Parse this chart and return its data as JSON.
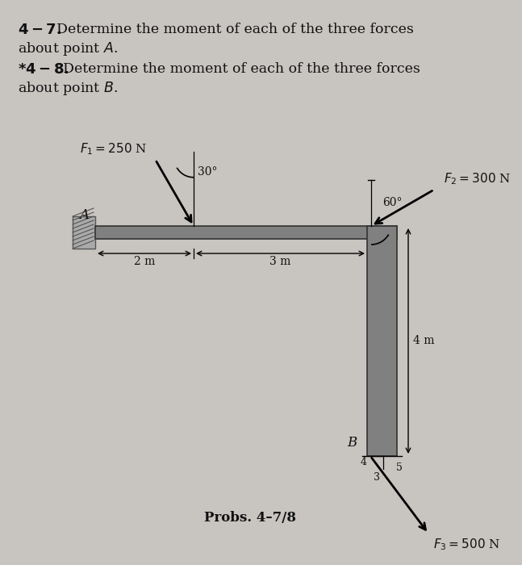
{
  "bg_color": "#c8c4c0",
  "text_color": "#111111",
  "beam_color": "#808080",
  "beam_edge_color": "#333333",
  "wall_color": "#999999",
  "F1_label": "$F_1 = 250$ N",
  "F2_label": "$F_2 = 300$ N",
  "F3_label": "$F_3 = 500$ N",
  "angle1_label": "30°",
  "angle2_label": "60°",
  "dim_2m": "2 m",
  "dim_3m": "3 m",
  "dim_4m": "4 m",
  "label_A": "A",
  "label_B": "B",
  "r4": "4",
  "r3": "3",
  "r5": "5",
  "caption": "Probs. 4–7/8"
}
